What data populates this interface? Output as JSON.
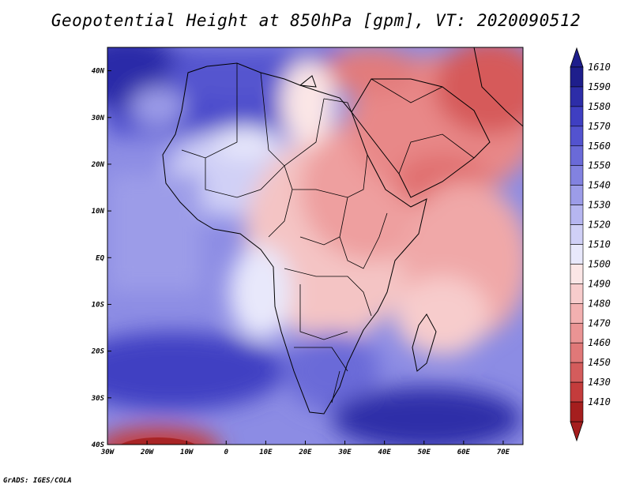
{
  "title": "Geopotential Height at 850hPa [gpm], VT: 2020090512",
  "credit": "GrADS: IGES/COLA",
  "chart_data": {
    "type": "heatmap",
    "variable": "Geopotential Height at 850hPa",
    "units": "gpm",
    "valid_time": "2020090512",
    "lon_range": [
      -30,
      75
    ],
    "lat_range": [
      -40,
      45
    ],
    "x_ticks": [
      "30W",
      "20W",
      "10W",
      "0",
      "10E",
      "20E",
      "30E",
      "40E",
      "50E",
      "60E",
      "70E"
    ],
    "x_tick_values": [
      -30,
      -20,
      -10,
      0,
      10,
      20,
      30,
      40,
      50,
      60,
      70
    ],
    "y_ticks": [
      "40N",
      "30N",
      "20N",
      "10N",
      "EQ",
      "10S",
      "20S",
      "30S",
      "40S"
    ],
    "y_tick_values": [
      40,
      30,
      20,
      10,
      0,
      -10,
      -20,
      -30,
      -40
    ],
    "colorbar": {
      "labels": [
        "1610",
        "1590",
        "1580",
        "1570",
        "1560",
        "1550",
        "1540",
        "1530",
        "1520",
        "1510",
        "1500",
        "1490",
        "1480",
        "1470",
        "1460",
        "1450",
        "1430",
        "1410"
      ],
      "colors": [
        "#1e1e8c",
        "#2d2da8",
        "#3f3fc2",
        "#5353cf",
        "#6a6ad8",
        "#8282e0",
        "#9c9ce8",
        "#b6b6f0",
        "#d0d0f6",
        "#e8e8fb",
        "#fbe6e6",
        "#f7cccc",
        "#f2b0b0",
        "#ea9494",
        "#e07878",
        "#d45c5c",
        "#c43c3c",
        "#a51e1e"
      ]
    }
  }
}
